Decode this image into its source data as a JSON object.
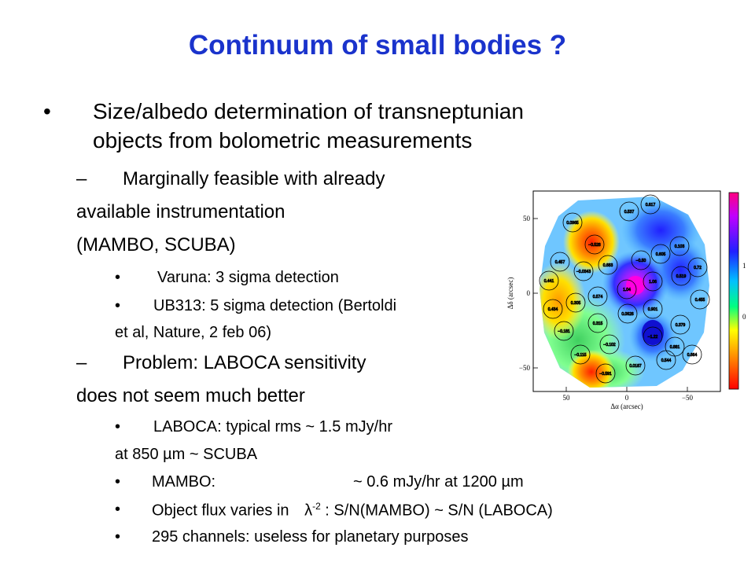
{
  "slide": {
    "title": "Continuum of small bodies ?",
    "bullet1": {
      "marker": "•",
      "line1": "Size/albedo determination of transneptunian",
      "line2": "objects from bolometric measurements"
    },
    "sub1": {
      "marker": "–",
      "line1": "Marginally feasible with already",
      "line2": "available instrumentation",
      "line3": "(MAMBO, SCUBA)"
    },
    "sub1_items": [
      {
        "marker": "•",
        "text": "Varuna: 3 sigma detection"
      },
      {
        "marker": "•",
        "text": "UB313: 5 sigma detection (Bertoldi",
        "cont": "et al, Nature, 2 feb 06)"
      }
    ],
    "sub2": {
      "marker": "–",
      "line1": "Problem: LABOCA sensitivity",
      "line2": "does not seem much better"
    },
    "sub2_items": [
      {
        "marker": "•",
        "text": "LABOCA: typical rms ~ 1.5 mJy/hr",
        "cont": "at 850 µm ~ SCUBA"
      },
      {
        "marker": "•",
        "text_a": "MAMBO:",
        "text_b": "~  0.6 mJy/hr at 1200 µm"
      },
      {
        "marker": "•",
        "text_a": "Object flux varies in ",
        "lambda": "λ",
        "exp": "-2",
        "text_b": " :  S/N(MAMBO) ~ S/N (LABOCA)"
      },
      {
        "marker": "•",
        "text": "295 channels: useless for planetary purposes"
      }
    ]
  },
  "figure": {
    "xlabel": "Δα (arcsec)",
    "ylabel": "Δδ (arcsec)",
    "xticks": [
      "50",
      "0",
      "−50"
    ],
    "yticks": [
      "50",
      "0",
      "−50"
    ],
    "colorbar_ticks": [
      "1",
      "0"
    ],
    "circle_values": [
      "0.617",
      "0.537",
      "0.0965",
      "−0.528",
      "0.457",
      "−0.0343",
      "0.605",
      "0.103",
      "0.72",
      "0.683",
      "−0.50",
      "0.519",
      "0.441",
      "1.04",
      "1.06",
      "0.574",
      "0.455",
      "0.434",
      "0.305",
      "0.0626",
      "0.901",
      "0.379",
      "0.315",
      "0.881",
      "−0.181",
      "−0.102",
      "−1.22",
      "0.664",
      "−0.115",
      "0.544",
      "−0.591",
      "0.0187"
    ]
  }
}
